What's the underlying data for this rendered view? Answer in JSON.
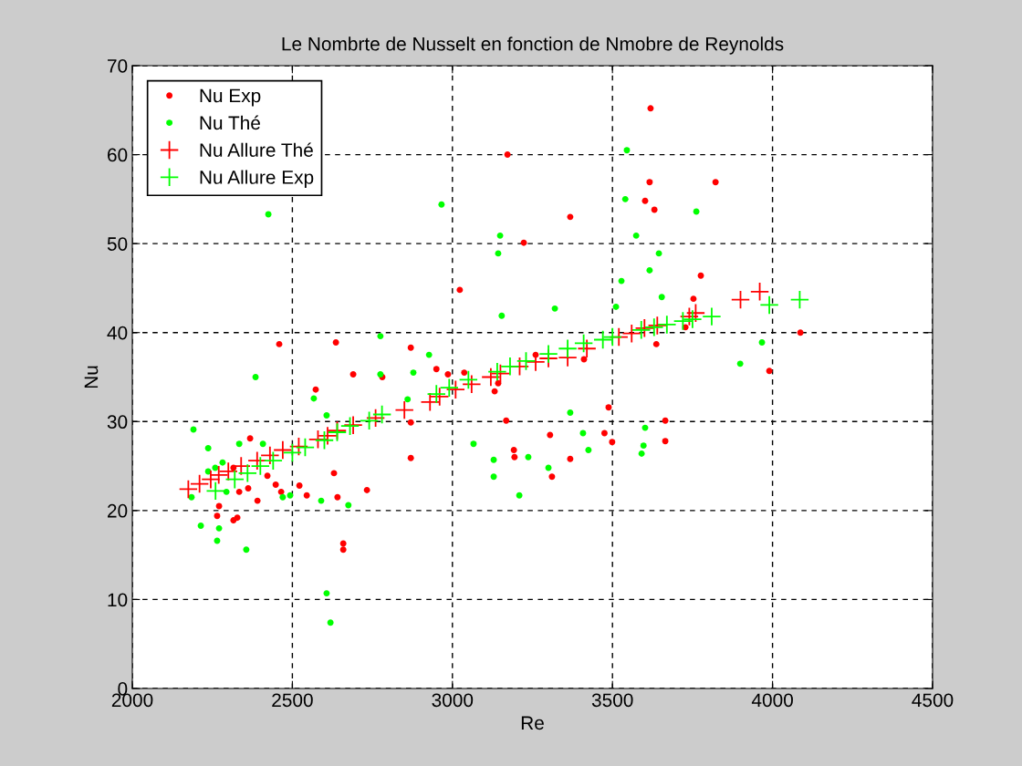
{
  "chart_data": {
    "type": "scatter",
    "title": "Le Nombrte de Nusselt en fonction de Nmobre de Reynolds",
    "xlabel": "Re",
    "ylabel": "Nu",
    "xlim": [
      2000,
      4500
    ],
    "xticks": [
      2000,
      2500,
      3000,
      3500,
      4000,
      4500
    ],
    "ylim": [
      0,
      70
    ],
    "yticks": [
      0,
      10,
      20,
      30,
      40,
      50,
      60,
      70
    ],
    "grid": true,
    "legend": "top left",
    "series": [
      {
        "name": "Nu Exp",
        "color": "#ff0000",
        "marker": "circle",
        "x": [
          3619,
          3172,
          3616,
          3822,
          3602,
          3631,
          3368,
          3223,
          3023,
          3776,
          3753,
          4087,
          3990,
          3728,
          3637,
          3260,
          3411,
          2950,
          2986,
          3037,
          3132,
          3143,
          3488,
          3168,
          3305,
          3475,
          3499,
          3665,
          3665,
          3192,
          3194,
          3368,
          3311,
          2459,
          2636,
          2870,
          2690,
          2781,
          2573,
          2870,
          2870,
          2368,
          2316,
          2422,
          2630,
          2448,
          2522,
          2334,
          2362,
          2465,
          2545,
          2641,
          2733,
          2391,
          2271,
          2265,
          2316,
          2328,
          2659,
          2659
        ],
        "values": [
          65.2,
          60.0,
          56.9,
          56.9,
          54.8,
          53.8,
          53.0,
          50.1,
          44.8,
          46.4,
          43.8,
          40.0,
          35.7,
          40.6,
          38.7,
          37.5,
          37.0,
          35.9,
          35.3,
          35.5,
          33.4,
          34.3,
          31.6,
          30.1,
          28.5,
          28.7,
          27.7,
          30.1,
          27.8,
          26.8,
          26.0,
          25.8,
          23.8,
          38.7,
          38.9,
          38.3,
          35.3,
          35.0,
          33.6,
          29.9,
          25.9,
          28.1,
          24.8,
          23.9,
          24.2,
          22.9,
          22.8,
          22.1,
          22.5,
          22.1,
          21.7,
          21.5,
          22.3,
          21.1,
          20.5,
          19.4,
          18.9,
          19.2,
          16.3,
          15.6
        ]
      },
      {
        "name": "Nu Thé",
        "color": "#00ff00",
        "marker": "circle",
        "x": [
          3545,
          2966,
          2425,
          3540,
          3762,
          3149,
          3143,
          3574,
          3645,
          3616,
          3528,
          3654,
          3511,
          3320,
          3154,
          3967,
          3899,
          2927,
          3368,
          3066,
          3408,
          3425,
          3602,
          3597,
          3591,
          3129,
          3129,
          3237,
          3300,
          3209,
          2775,
          2878,
          2775,
          2567,
          2607,
          2385,
          2191,
          2237,
          2334,
          2408,
          2282,
          2259,
          2237,
          2294,
          2185,
          2470,
          2493,
          2590,
          2675,
          2214,
          2271,
          2265,
          2356,
          2607,
          2619,
          2860
        ],
        "values": [
          60.5,
          54.4,
          53.3,
          55.0,
          53.6,
          50.9,
          48.9,
          50.9,
          48.9,
          47.0,
          45.8,
          44.0,
          42.9,
          42.7,
          41.9,
          38.9,
          36.5,
          37.5,
          31.0,
          27.5,
          28.7,
          26.8,
          29.3,
          27.3,
          26.4,
          25.7,
          23.8,
          26.0,
          24.8,
          21.7,
          39.6,
          35.5,
          35.3,
          32.6,
          30.7,
          35.0,
          29.1,
          27.0,
          27.5,
          27.5,
          25.4,
          24.8,
          24.4,
          22.1,
          21.5,
          21.5,
          21.7,
          21.1,
          20.6,
          18.3,
          18.0,
          16.6,
          15.6,
          10.7,
          7.4,
          32.5
        ]
      },
      {
        "name": "Nu Allure Thé",
        "color": "#ff0000",
        "marker": "cross",
        "x": [
          2175,
          2210,
          2245,
          2270,
          2300,
          2340,
          2390,
          2430,
          2470,
          2520,
          2580,
          2610,
          2640,
          2690,
          2760,
          2850,
          2930,
          2960,
          3010,
          3060,
          3120,
          3150,
          3210,
          3260,
          3300,
          3360,
          3420,
          3520,
          3560,
          3600,
          3640,
          3740,
          3760,
          3900,
          3960
        ],
        "values": [
          22.4,
          23.0,
          23.5,
          24.0,
          24.4,
          25.0,
          25.6,
          26.2,
          26.8,
          27.2,
          28.0,
          28.4,
          29.0,
          29.6,
          30.4,
          31.3,
          32.2,
          32.8,
          33.6,
          34.2,
          35.0,
          35.4,
          36.2,
          36.7,
          37.1,
          37.2,
          38.2,
          39.5,
          39.9,
          40.5,
          40.8,
          41.8,
          42.2,
          43.7,
          44.6
        ]
      },
      {
        "name": "Nu Allure Exp",
        "color": "#00ff00",
        "marker": "cross",
        "x": [
          2260,
          2320,
          2360,
          2400,
          2440,
          2500,
          2540,
          2600,
          2640,
          2680,
          2740,
          2780,
          2950,
          2990,
          3050,
          3140,
          3180,
          3230,
          3300,
          3360,
          3410,
          3470,
          3500,
          3590,
          3630,
          3670,
          3720,
          3750,
          3810,
          3990,
          4085
        ],
        "values": [
          22.2,
          23.5,
          24.2,
          25.0,
          25.6,
          26.5,
          27.1,
          27.9,
          28.8,
          29.5,
          30.1,
          30.8,
          33.1,
          33.8,
          34.7,
          35.6,
          36.2,
          36.8,
          37.6,
          38.2,
          38.8,
          39.2,
          39.5,
          40.3,
          40.6,
          40.9,
          41.3,
          41.5,
          41.8,
          43.1,
          43.7
        ]
      }
    ]
  }
}
